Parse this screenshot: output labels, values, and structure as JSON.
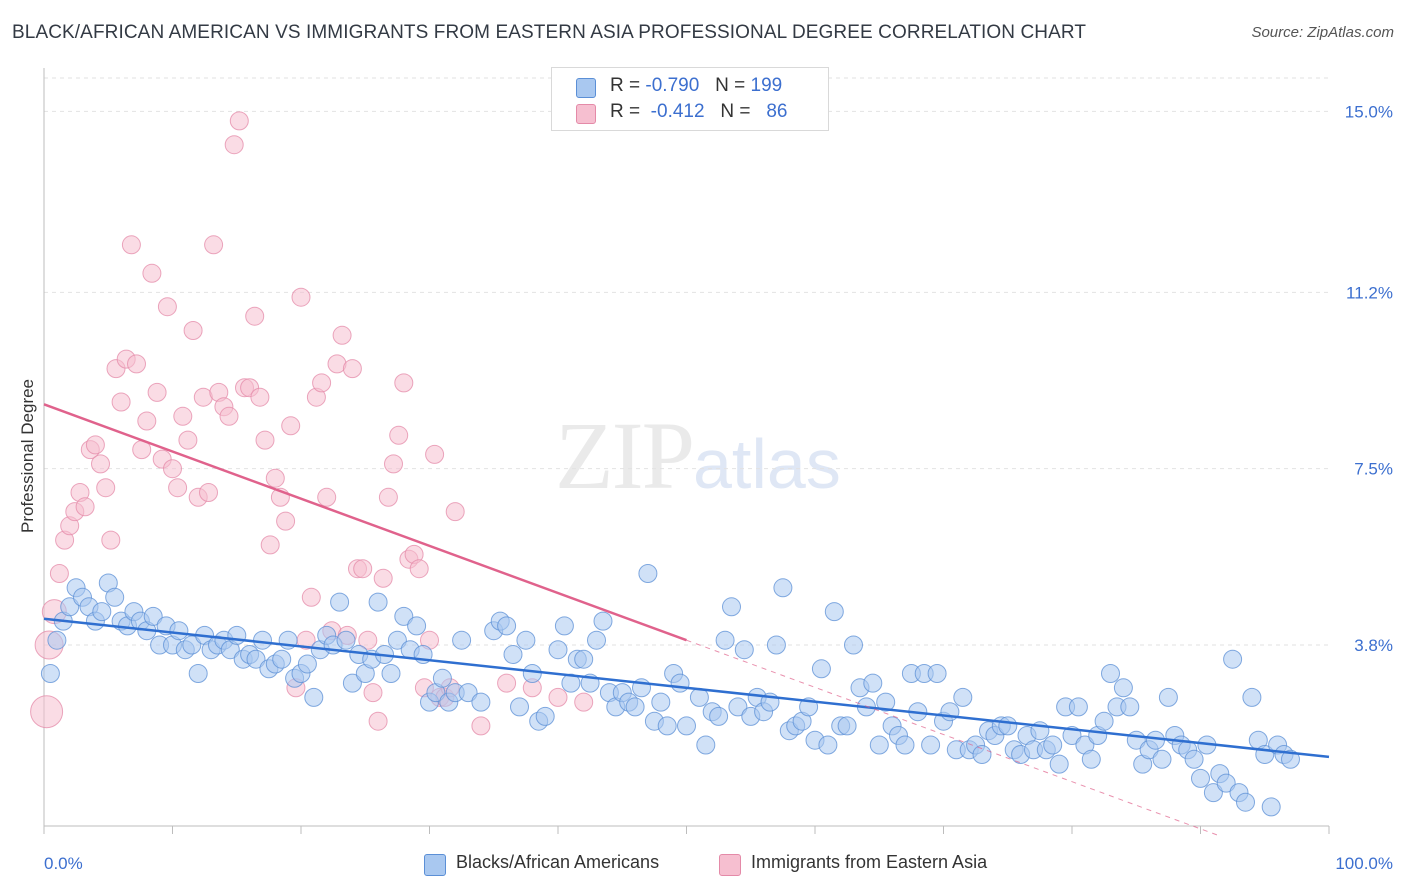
{
  "header": {
    "title": "BLACK/AFRICAN AMERICAN VS IMMIGRANTS FROM EASTERN ASIA PROFESSIONAL DEGREE CORRELATION CHART",
    "source": "Source: ZipAtlas.com"
  },
  "watermark": {
    "zip": "ZIP",
    "atlas": "atlas"
  },
  "stats": {
    "blue": {
      "r_label": "R =",
      "r": "-0.790",
      "n_label": "N =",
      "n": "199"
    },
    "pink": {
      "r_label": "R =",
      "r": "-0.412",
      "n_label": "N =",
      "n": "86"
    }
  },
  "colors": {
    "blue_fill": "#a9c8f0",
    "blue_stroke": "#5b8fd6",
    "blue_line": "#2f6fd0",
    "pink_fill": "#f6bfd0",
    "pink_stroke": "#e48aa8",
    "pink_line": "#e0628c",
    "axis_label": "#3c6fcf",
    "grid": "#e2e2e2"
  },
  "legend": {
    "blue": "Blacks/African Americans",
    "pink": "Immigrants from Eastern Asia"
  },
  "chart_data": {
    "type": "scatter",
    "title": "BLACK/AFRICAN AMERICAN VS IMMIGRANTS FROM EASTERN ASIA PROFESSIONAL DEGREE CORRELATION CHART",
    "xlabel": "",
    "ylabel": "Professional Degree",
    "xlim": [
      0,
      100
    ],
    "ylim": [
      0,
      15.7
    ],
    "x_tick_labels": {
      "min": "0.0%",
      "max": "100.0%"
    },
    "y_ticks": [
      3.8,
      7.5,
      11.2,
      15.0
    ],
    "y_tick_labels": [
      "3.8%",
      "7.5%",
      "11.2%",
      "15.0%"
    ],
    "grid": "horizontal dashed",
    "series": [
      {
        "name": "Blacks/African Americans",
        "color": "#a9c8f0",
        "R": -0.79,
        "N": 199,
        "trend": {
          "x": [
            0,
            100
          ],
          "y": [
            4.35,
            1.45
          ],
          "style": "solid"
        },
        "points": [
          [
            0.5,
            3.2
          ],
          [
            1,
            3.9
          ],
          [
            1.5,
            4.3
          ],
          [
            2,
            4.6
          ],
          [
            2.5,
            5.0
          ],
          [
            3,
            4.8
          ],
          [
            3.5,
            4.6
          ],
          [
            4,
            4.3
          ],
          [
            4.5,
            4.5
          ],
          [
            5,
            5.1
          ],
          [
            5.5,
            4.8
          ],
          [
            6,
            4.3
          ],
          [
            6.5,
            4.2
          ],
          [
            7,
            4.5
          ],
          [
            7.5,
            4.3
          ],
          [
            8,
            4.1
          ],
          [
            8.5,
            4.4
          ],
          [
            9,
            3.8
          ],
          [
            9.5,
            4.2
          ],
          [
            10,
            3.8
          ],
          [
            10.5,
            4.1
          ],
          [
            11,
            3.7
          ],
          [
            11.5,
            3.8
          ],
          [
            12,
            3.2
          ],
          [
            12.5,
            4.0
          ],
          [
            13,
            3.7
          ],
          [
            13.5,
            3.8
          ],
          [
            14,
            3.9
          ],
          [
            14.5,
            3.7
          ],
          [
            15,
            4.0
          ],
          [
            15.5,
            3.5
          ],
          [
            16,
            3.6
          ],
          [
            16.5,
            3.5
          ],
          [
            17,
            3.9
          ],
          [
            17.5,
            3.3
          ],
          [
            18,
            3.4
          ],
          [
            18.5,
            3.5
          ],
          [
            19,
            3.9
          ],
          [
            19.5,
            3.1
          ],
          [
            20,
            3.2
          ],
          [
            20.5,
            3.4
          ],
          [
            21,
            2.7
          ],
          [
            21.5,
            3.7
          ],
          [
            22,
            4.0
          ],
          [
            22.5,
            3.8
          ],
          [
            23,
            4.7
          ],
          [
            23.5,
            3.9
          ],
          [
            24,
            3.0
          ],
          [
            24.5,
            3.6
          ],
          [
            25,
            3.2
          ],
          [
            25.5,
            3.5
          ],
          [
            26,
            4.7
          ],
          [
            26.5,
            3.6
          ],
          [
            27,
            3.2
          ],
          [
            27.5,
            3.9
          ],
          [
            28,
            4.4
          ],
          [
            28.5,
            3.7
          ],
          [
            29,
            4.2
          ],
          [
            29.5,
            3.6
          ],
          [
            30,
            2.6
          ],
          [
            30.5,
            2.8
          ],
          [
            31,
            3.1
          ],
          [
            31.5,
            2.6
          ],
          [
            32,
            2.8
          ],
          [
            32.5,
            3.9
          ],
          [
            33,
            2.8
          ],
          [
            34,
            2.6
          ],
          [
            35,
            4.1
          ],
          [
            35.5,
            4.3
          ],
          [
            36,
            4.2
          ],
          [
            36.5,
            3.6
          ],
          [
            37,
            2.5
          ],
          [
            37.5,
            3.9
          ],
          [
            38,
            3.2
          ],
          [
            38.5,
            2.2
          ],
          [
            39,
            2.3
          ],
          [
            40,
            3.7
          ],
          [
            40.5,
            4.2
          ],
          [
            41,
            3.0
          ],
          [
            41.5,
            3.5
          ],
          [
            42,
            3.5
          ],
          [
            42.5,
            3.0
          ],
          [
            43,
            3.9
          ],
          [
            43.5,
            4.3
          ],
          [
            44,
            2.8
          ],
          [
            44.5,
            2.5
          ],
          [
            45,
            2.8
          ],
          [
            45.5,
            2.6
          ],
          [
            46,
            2.5
          ],
          [
            46.5,
            2.9
          ],
          [
            47,
            5.3
          ],
          [
            47.5,
            2.2
          ],
          [
            48,
            2.6
          ],
          [
            48.5,
            2.1
          ],
          [
            49,
            3.2
          ],
          [
            49.5,
            3.0
          ],
          [
            50,
            2.1
          ],
          [
            51,
            2.7
          ],
          [
            51.5,
            1.7
          ],
          [
            52,
            2.4
          ],
          [
            52.5,
            2.3
          ],
          [
            53,
            3.9
          ],
          [
            53.5,
            4.6
          ],
          [
            54,
            2.5
          ],
          [
            54.5,
            3.7
          ],
          [
            55,
            2.3
          ],
          [
            55.5,
            2.7
          ],
          [
            56,
            2.4
          ],
          [
            56.5,
            2.6
          ],
          [
            57,
            3.8
          ],
          [
            57.5,
            5.0
          ],
          [
            58,
            2.0
          ],
          [
            58.5,
            2.1
          ],
          [
            59,
            2.2
          ],
          [
            59.5,
            2.5
          ],
          [
            60,
            1.8
          ],
          [
            60.5,
            3.3
          ],
          [
            61,
            1.7
          ],
          [
            61.5,
            4.5
          ],
          [
            62,
            2.1
          ],
          [
            62.5,
            2.1
          ],
          [
            63,
            3.8
          ],
          [
            63.5,
            2.9
          ],
          [
            64,
            2.5
          ],
          [
            64.5,
            3.0
          ],
          [
            65,
            1.7
          ],
          [
            65.5,
            2.6
          ],
          [
            66,
            2.1
          ],
          [
            66.5,
            1.9
          ],
          [
            67,
            1.7
          ],
          [
            67.5,
            3.2
          ],
          [
            68,
            2.4
          ],
          [
            68.5,
            3.2
          ],
          [
            69,
            1.7
          ],
          [
            69.5,
            3.2
          ],
          [
            70,
            2.2
          ],
          [
            70.5,
            2.4
          ],
          [
            71,
            1.6
          ],
          [
            71.5,
            2.7
          ],
          [
            72,
            1.6
          ],
          [
            72.5,
            1.7
          ],
          [
            73,
            1.5
          ],
          [
            73.5,
            2.0
          ],
          [
            74,
            1.9
          ],
          [
            74.5,
            2.1
          ],
          [
            75,
            2.1
          ],
          [
            75.5,
            1.6
          ],
          [
            76,
            1.5
          ],
          [
            76.5,
            1.9
          ],
          [
            77,
            1.6
          ],
          [
            77.5,
            2.0
          ],
          [
            78,
            1.6
          ],
          [
            78.5,
            1.7
          ],
          [
            79,
            1.3
          ],
          [
            79.5,
            2.5
          ],
          [
            80,
            1.9
          ],
          [
            80.5,
            2.5
          ],
          [
            81,
            1.7
          ],
          [
            81.5,
            1.4
          ],
          [
            82,
            1.9
          ],
          [
            82.5,
            2.2
          ],
          [
            83,
            3.2
          ],
          [
            83.5,
            2.5
          ],
          [
            84,
            2.9
          ],
          [
            84.5,
            2.5
          ],
          [
            85,
            1.8
          ],
          [
            85.5,
            1.3
          ],
          [
            86,
            1.6
          ],
          [
            86.5,
            1.8
          ],
          [
            87,
            1.4
          ],
          [
            87.5,
            2.7
          ],
          [
            88,
            1.9
          ],
          [
            88.5,
            1.7
          ],
          [
            89,
            1.6
          ],
          [
            89.5,
            1.4
          ],
          [
            90,
            1.0
          ],
          [
            90.5,
            1.7
          ],
          [
            91,
            0.7
          ],
          [
            91.5,
            1.1
          ],
          [
            92,
            0.9
          ],
          [
            92.5,
            3.5
          ],
          [
            93,
            0.7
          ],
          [
            93.5,
            0.5
          ],
          [
            94,
            2.7
          ],
          [
            94.5,
            1.8
          ],
          [
            95,
            1.5
          ],
          [
            95.5,
            0.4
          ],
          [
            96,
            1.7
          ],
          [
            96.5,
            1.5
          ],
          [
            97,
            1.4
          ]
        ]
      },
      {
        "name": "Immigrants from Eastern Asia",
        "color": "#f6bfd0",
        "R": -0.412,
        "N": 86,
        "trend": {
          "x": [
            0,
            50,
            100
          ],
          "y": [
            8.85,
            3.9,
            -1.05
          ],
          "style": "solid to x=50, dashed after"
        },
        "points": [
          [
            0.2,
            2.4
          ],
          [
            0.4,
            3.8
          ],
          [
            0.8,
            4.5
          ],
          [
            1.2,
            5.3
          ],
          [
            1.6,
            6.0
          ],
          [
            2,
            6.3
          ],
          [
            2.4,
            6.6
          ],
          [
            2.8,
            7.0
          ],
          [
            3.2,
            6.7
          ],
          [
            3.6,
            7.9
          ],
          [
            4,
            8.0
          ],
          [
            4.4,
            7.6
          ],
          [
            4.8,
            7.1
          ],
          [
            5.2,
            6.0
          ],
          [
            5.6,
            9.6
          ],
          [
            6,
            8.9
          ],
          [
            6.4,
            9.8
          ],
          [
            6.8,
            12.2
          ],
          [
            7.2,
            9.7
          ],
          [
            7.6,
            7.9
          ],
          [
            8,
            8.5
          ],
          [
            8.4,
            11.6
          ],
          [
            8.8,
            9.1
          ],
          [
            9.2,
            7.7
          ],
          [
            9.6,
            10.9
          ],
          [
            10,
            7.5
          ],
          [
            10.4,
            7.1
          ],
          [
            10.8,
            8.6
          ],
          [
            11.2,
            8.1
          ],
          [
            11.6,
            10.4
          ],
          [
            12,
            6.9
          ],
          [
            12.4,
            9.0
          ],
          [
            12.8,
            7.0
          ],
          [
            13.2,
            12.2
          ],
          [
            13.6,
            9.1
          ],
          [
            14,
            8.8
          ],
          [
            14.4,
            8.6
          ],
          [
            14.8,
            14.3
          ],
          [
            15.2,
            14.8
          ],
          [
            15.6,
            9.2
          ],
          [
            16,
            9.2
          ],
          [
            16.4,
            10.7
          ],
          [
            16.8,
            9.0
          ],
          [
            17.2,
            8.1
          ],
          [
            17.6,
            5.9
          ],
          [
            18,
            7.3
          ],
          [
            18.4,
            6.9
          ],
          [
            18.8,
            6.4
          ],
          [
            19.2,
            8.4
          ],
          [
            19.6,
            2.9
          ],
          [
            20,
            11.1
          ],
          [
            20.4,
            3.9
          ],
          [
            20.8,
            4.8
          ],
          [
            21.2,
            9.0
          ],
          [
            21.6,
            9.3
          ],
          [
            22,
            6.9
          ],
          [
            22.4,
            4.1
          ],
          [
            22.8,
            9.7
          ],
          [
            23.2,
            10.3
          ],
          [
            23.6,
            4.0
          ],
          [
            24,
            9.6
          ],
          [
            24.4,
            5.4
          ],
          [
            24.8,
            5.4
          ],
          [
            25.2,
            3.9
          ],
          [
            25.6,
            2.8
          ],
          [
            26,
            2.2
          ],
          [
            26.4,
            5.2
          ],
          [
            26.8,
            6.9
          ],
          [
            27.2,
            7.6
          ],
          [
            27.6,
            8.2
          ],
          [
            28,
            9.3
          ],
          [
            28.4,
            5.6
          ],
          [
            28.8,
            5.7
          ],
          [
            29.2,
            5.4
          ],
          [
            29.6,
            2.9
          ],
          [
            30,
            3.9
          ],
          [
            30.4,
            7.8
          ],
          [
            30.8,
            2.7
          ],
          [
            31.2,
            2.7
          ],
          [
            31.6,
            2.9
          ],
          [
            32,
            6.6
          ],
          [
            34,
            2.1
          ],
          [
            36,
            3.0
          ],
          [
            38,
            2.9
          ],
          [
            40,
            2.7
          ],
          [
            42,
            2.6
          ]
        ]
      }
    ]
  }
}
